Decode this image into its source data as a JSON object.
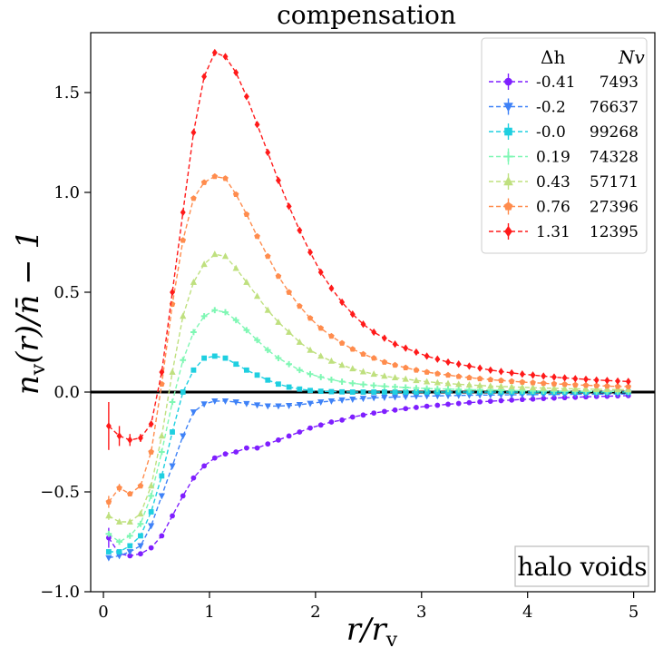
{
  "chart_data": {
    "type": "line",
    "title": "compensation",
    "xlabel": "r/r_v",
    "ylabel": "n_v(r)/n̄ − 1",
    "xlim": [
      -0.12,
      5.2
    ],
    "ylim": [
      -1.0,
      1.8
    ],
    "xticks": [
      "0",
      "1",
      "2",
      "3",
      "4",
      "5"
    ],
    "yticks": [
      "−1.0",
      "−0.5",
      "0.0",
      "0.5",
      "1.0",
      "1.5"
    ],
    "xtick_values": [
      0,
      1,
      2,
      3,
      4,
      5
    ],
    "ytick_values": [
      -1.0,
      -0.5,
      0.0,
      0.5,
      1.0,
      1.5
    ],
    "reference_line_y": 0.0,
    "legend": {
      "placement": "top-right",
      "header_delta": "Δh",
      "header_n": "Nv"
    },
    "annotation": "halo voids",
    "series": [
      {
        "name": "-0.41",
        "n_voids": "7493",
        "color": "#7f1fff",
        "marker": "circle",
        "x": [
          0.05,
          0.15,
          0.25,
          0.35,
          0.45,
          0.55,
          0.65,
          0.75,
          0.85,
          0.95,
          1.05,
          1.15,
          1.25,
          1.35,
          1.45,
          1.55,
          1.65,
          1.75,
          1.85,
          1.95,
          2.05,
          2.15,
          2.25,
          2.35,
          2.45,
          2.55,
          2.65,
          2.75,
          2.85,
          2.95,
          3.05,
          3.15,
          3.25,
          3.35,
          3.45,
          3.55,
          3.65,
          3.75,
          3.85,
          3.95,
          4.05,
          4.15,
          4.25,
          4.35,
          4.45,
          4.55,
          4.65,
          4.75,
          4.85,
          4.95
        ],
        "y": [
          -0.73,
          -0.81,
          -0.82,
          -0.81,
          -0.78,
          -0.72,
          -0.62,
          -0.52,
          -0.43,
          -0.37,
          -0.33,
          -0.31,
          -0.3,
          -0.28,
          -0.28,
          -0.26,
          -0.24,
          -0.22,
          -0.2,
          -0.18,
          -0.165,
          -0.15,
          -0.14,
          -0.125,
          -0.115,
          -0.105,
          -0.097,
          -0.09,
          -0.083,
          -0.077,
          -0.071,
          -0.066,
          -0.061,
          -0.057,
          -0.053,
          -0.049,
          -0.046,
          -0.043,
          -0.04,
          -0.037,
          -0.035,
          -0.032,
          -0.03,
          -0.028,
          -0.026,
          -0.024,
          -0.022,
          -0.021,
          -0.019,
          -0.018
        ],
        "err": [
          0.05,
          0.02,
          0.01,
          0.01,
          0,
          0,
          0,
          0,
          0,
          0,
          0,
          0,
          0,
          0,
          0,
          0,
          0,
          0,
          0,
          0,
          0,
          0,
          0,
          0,
          0,
          0,
          0,
          0,
          0,
          0,
          0,
          0,
          0,
          0,
          0,
          0,
          0,
          0,
          0,
          0,
          0,
          0,
          0,
          0,
          0,
          0,
          0,
          0,
          0,
          0
        ]
      },
      {
        "name": "-0.2",
        "n_voids": "76637",
        "color": "#3f82f7",
        "marker": "triangle-down",
        "x": [
          0.05,
          0.15,
          0.25,
          0.35,
          0.45,
          0.55,
          0.65,
          0.75,
          0.85,
          0.95,
          1.05,
          1.15,
          1.25,
          1.35,
          1.45,
          1.55,
          1.65,
          1.75,
          1.85,
          1.95,
          2.05,
          2.15,
          2.25,
          2.35,
          2.45,
          2.55,
          2.65,
          2.75,
          2.85,
          2.95,
          3.05,
          3.15,
          3.25,
          3.35,
          3.45,
          3.55,
          3.65,
          3.75,
          3.85,
          3.95,
          4.05,
          4.15,
          4.25,
          4.35,
          4.45,
          4.55,
          4.65,
          4.75,
          4.85,
          4.95
        ],
        "y": [
          -0.83,
          -0.82,
          -0.8,
          -0.77,
          -0.67,
          -0.52,
          -0.37,
          -0.22,
          -0.1,
          -0.06,
          -0.045,
          -0.045,
          -0.05,
          -0.058,
          -0.065,
          -0.07,
          -0.07,
          -0.068,
          -0.063,
          -0.057,
          -0.05,
          -0.045,
          -0.04,
          -0.036,
          -0.032,
          -0.029,
          -0.027,
          -0.025,
          -0.023,
          -0.021,
          -0.02,
          -0.019,
          -0.018,
          -0.017,
          -0.016,
          -0.015,
          -0.015,
          -0.014,
          -0.014,
          -0.013,
          -0.013,
          -0.012,
          -0.012,
          -0.012,
          -0.011,
          -0.011,
          -0.011,
          -0.01,
          -0.01,
          -0.01
        ],
        "err": [
          0.01,
          0.005,
          0,
          0,
          0,
          0,
          0,
          0,
          0,
          0,
          0,
          0,
          0,
          0,
          0,
          0,
          0,
          0,
          0,
          0,
          0,
          0,
          0,
          0,
          0,
          0,
          0,
          0,
          0,
          0,
          0,
          0,
          0,
          0,
          0,
          0,
          0,
          0,
          0,
          0,
          0,
          0,
          0,
          0,
          0,
          0,
          0,
          0,
          0,
          0
        ]
      },
      {
        "name": "-0.0",
        "n_voids": "99268",
        "color": "#1fcfe0",
        "marker": "square",
        "x": [
          0.05,
          0.15,
          0.25,
          0.35,
          0.45,
          0.55,
          0.65,
          0.75,
          0.85,
          0.95,
          1.05,
          1.15,
          1.25,
          1.35,
          1.45,
          1.55,
          1.65,
          1.75,
          1.85,
          1.95,
          2.05,
          2.15,
          2.25,
          2.35,
          2.45,
          2.55,
          2.65,
          2.75,
          2.85,
          2.95,
          3.05,
          3.15,
          3.25,
          3.35,
          3.45,
          3.55,
          3.65,
          3.75,
          3.85,
          3.95,
          4.05,
          4.15,
          4.25,
          4.35,
          4.45,
          4.55,
          4.65,
          4.75,
          4.85,
          4.95
        ],
        "y": [
          -0.8,
          -0.8,
          -0.77,
          -0.72,
          -0.6,
          -0.42,
          -0.2,
          0.0,
          0.11,
          0.17,
          0.18,
          0.17,
          0.14,
          0.11,
          0.085,
          0.06,
          0.04,
          0.025,
          0.015,
          0.008,
          0.004,
          0.002,
          0.001,
          0.0,
          0.0,
          0.0,
          0.0,
          0.0,
          0.0,
          0.0,
          0.0,
          0.0,
          0.0,
          0.0,
          0.0,
          0.0,
          0.0,
          0.0,
          0.0,
          0.0,
          0.0,
          0.0,
          0.0,
          0.0,
          0.0,
          0.0,
          0.0,
          0.0,
          0.0,
          0.0
        ],
        "err": [
          0.01,
          0.005,
          0,
          0,
          0,
          0,
          0,
          0,
          0,
          0,
          0,
          0,
          0,
          0,
          0,
          0,
          0,
          0,
          0,
          0,
          0,
          0,
          0,
          0,
          0,
          0,
          0,
          0,
          0,
          0,
          0,
          0,
          0,
          0,
          0,
          0,
          0,
          0,
          0,
          0,
          0,
          0,
          0,
          0,
          0,
          0,
          0,
          0,
          0,
          0
        ]
      },
      {
        "name": "0.19",
        "n_voids": "74328",
        "color": "#7ff7b4",
        "marker": "plus",
        "x": [
          0.05,
          0.15,
          0.25,
          0.35,
          0.45,
          0.55,
          0.65,
          0.75,
          0.85,
          0.95,
          1.05,
          1.15,
          1.25,
          1.35,
          1.45,
          1.55,
          1.65,
          1.75,
          1.85,
          1.95,
          2.05,
          2.15,
          2.25,
          2.35,
          2.45,
          2.55,
          2.65,
          2.75,
          2.85,
          2.95,
          3.05,
          3.15,
          3.25,
          3.35,
          3.45,
          3.55,
          3.65,
          3.75,
          3.85,
          3.95,
          4.05,
          4.15,
          4.25,
          4.35,
          4.45,
          4.55,
          4.65,
          4.75,
          4.85,
          4.95
        ],
        "y": [
          -0.71,
          -0.75,
          -0.72,
          -0.66,
          -0.52,
          -0.3,
          -0.05,
          0.16,
          0.3,
          0.38,
          0.41,
          0.4,
          0.36,
          0.31,
          0.26,
          0.21,
          0.17,
          0.14,
          0.11,
          0.09,
          0.075,
          0.062,
          0.052,
          0.044,
          0.038,
          0.033,
          0.029,
          0.026,
          0.023,
          0.02,
          0.018,
          0.016,
          0.015,
          0.013,
          0.012,
          0.011,
          0.01,
          0.009,
          0.008,
          0.007,
          0.006,
          0.006,
          0.005,
          0.005,
          0.004,
          0.004,
          0.003,
          0.003,
          0.003,
          0.002
        ],
        "err": [
          0.01,
          0.005,
          0,
          0,
          0,
          0,
          0,
          0,
          0,
          0,
          0,
          0,
          0,
          0,
          0,
          0,
          0,
          0,
          0,
          0,
          0,
          0,
          0,
          0,
          0,
          0,
          0,
          0,
          0,
          0,
          0,
          0,
          0,
          0,
          0,
          0,
          0,
          0,
          0,
          0,
          0,
          0,
          0,
          0,
          0,
          0,
          0,
          0,
          0,
          0
        ]
      },
      {
        "name": "0.43",
        "n_voids": "57171",
        "color": "#bfe07f",
        "marker": "triangle-up",
        "x": [
          0.05,
          0.15,
          0.25,
          0.35,
          0.45,
          0.55,
          0.65,
          0.75,
          0.85,
          0.95,
          1.05,
          1.15,
          1.25,
          1.35,
          1.45,
          1.55,
          1.65,
          1.75,
          1.85,
          1.95,
          2.05,
          2.15,
          2.25,
          2.35,
          2.45,
          2.55,
          2.65,
          2.75,
          2.85,
          2.95,
          3.05,
          3.15,
          3.25,
          3.35,
          3.45,
          3.55,
          3.65,
          3.75,
          3.85,
          3.95,
          4.05,
          4.15,
          4.25,
          4.35,
          4.45,
          4.55,
          4.65,
          4.75,
          4.85,
          4.95
        ],
        "y": [
          -0.62,
          -0.65,
          -0.65,
          -0.61,
          -0.47,
          -0.22,
          0.1,
          0.38,
          0.55,
          0.64,
          0.69,
          0.68,
          0.62,
          0.55,
          0.48,
          0.41,
          0.35,
          0.3,
          0.25,
          0.21,
          0.18,
          0.155,
          0.135,
          0.117,
          0.102,
          0.09,
          0.08,
          0.072,
          0.065,
          0.058,
          0.052,
          0.047,
          0.043,
          0.039,
          0.036,
          0.033,
          0.03,
          0.028,
          0.026,
          0.024,
          0.022,
          0.02,
          0.019,
          0.017,
          0.016,
          0.015,
          0.014,
          0.013,
          0.012,
          0.012
        ],
        "err": [
          0.02,
          0.01,
          0.005,
          0,
          0,
          0,
          0,
          0,
          0,
          0,
          0,
          0,
          0,
          0,
          0,
          0,
          0,
          0,
          0,
          0,
          0,
          0,
          0,
          0,
          0,
          0,
          0,
          0,
          0,
          0,
          0,
          0,
          0,
          0,
          0,
          0,
          0,
          0,
          0,
          0,
          0,
          0,
          0,
          0,
          0,
          0,
          0,
          0,
          0,
          0
        ]
      },
      {
        "name": "0.76",
        "n_voids": "27396",
        "color": "#ff8c4d",
        "marker": "pentagon",
        "x": [
          0.05,
          0.15,
          0.25,
          0.35,
          0.45,
          0.55,
          0.65,
          0.75,
          0.85,
          0.95,
          1.05,
          1.15,
          1.25,
          1.35,
          1.45,
          1.55,
          1.65,
          1.75,
          1.85,
          1.95,
          2.05,
          2.15,
          2.25,
          2.35,
          2.45,
          2.55,
          2.65,
          2.75,
          2.85,
          2.95,
          3.05,
          3.15,
          3.25,
          3.35,
          3.45,
          3.55,
          3.65,
          3.75,
          3.85,
          3.95,
          4.05,
          4.15,
          4.25,
          4.35,
          4.45,
          4.55,
          4.65,
          4.75,
          4.85,
          4.95
        ],
        "y": [
          -0.55,
          -0.48,
          -0.51,
          -0.47,
          -0.3,
          0.04,
          0.44,
          0.76,
          0.97,
          1.05,
          1.08,
          1.07,
          0.99,
          0.89,
          0.78,
          0.68,
          0.58,
          0.5,
          0.43,
          0.37,
          0.32,
          0.28,
          0.245,
          0.215,
          0.19,
          0.17,
          0.15,
          0.135,
          0.122,
          0.11,
          0.1,
          0.092,
          0.085,
          0.078,
          0.072,
          0.067,
          0.062,
          0.058,
          0.054,
          0.05,
          0.047,
          0.044,
          0.041,
          0.039,
          0.036,
          0.034,
          0.032,
          0.03,
          0.028,
          0.027
        ],
        "err": [
          0.03,
          0.02,
          0.01,
          0.005,
          0,
          0,
          0,
          0,
          0,
          0,
          0,
          0,
          0,
          0,
          0,
          0,
          0,
          0,
          0,
          0,
          0,
          0,
          0,
          0,
          0,
          0,
          0,
          0,
          0,
          0,
          0,
          0,
          0,
          0,
          0,
          0,
          0,
          0,
          0,
          0,
          0,
          0,
          0,
          0,
          0,
          0,
          0,
          0,
          0,
          0
        ]
      },
      {
        "name": "1.31",
        "n_voids": "12395",
        "color": "#ff1a1a",
        "marker": "diamond",
        "x": [
          0.05,
          0.15,
          0.25,
          0.35,
          0.45,
          0.55,
          0.65,
          0.75,
          0.85,
          0.95,
          1.05,
          1.15,
          1.25,
          1.35,
          1.45,
          1.55,
          1.65,
          1.75,
          1.85,
          1.95,
          2.05,
          2.15,
          2.25,
          2.35,
          2.45,
          2.55,
          2.65,
          2.75,
          2.85,
          2.95,
          3.05,
          3.15,
          3.25,
          3.35,
          3.45,
          3.55,
          3.65,
          3.75,
          3.85,
          3.95,
          4.05,
          4.15,
          4.25,
          4.35,
          4.45,
          4.55,
          4.65,
          4.75,
          4.85,
          4.95
        ],
        "y": [
          -0.17,
          -0.22,
          -0.24,
          -0.23,
          -0.16,
          0.1,
          0.5,
          0.9,
          1.3,
          1.58,
          1.7,
          1.68,
          1.6,
          1.48,
          1.34,
          1.2,
          1.06,
          0.93,
          0.81,
          0.7,
          0.6,
          0.52,
          0.45,
          0.39,
          0.34,
          0.3,
          0.27,
          0.24,
          0.22,
          0.2,
          0.18,
          0.165,
          0.15,
          0.14,
          0.13,
          0.12,
          0.11,
          0.103,
          0.096,
          0.09,
          0.085,
          0.08,
          0.075,
          0.071,
          0.067,
          0.064,
          0.06,
          0.058,
          0.055,
          0.053
        ],
        "err": [
          0.12,
          0.05,
          0.03,
          0.02,
          0.01,
          0,
          0,
          0,
          0,
          0,
          0,
          0,
          0,
          0,
          0,
          0,
          0,
          0,
          0,
          0,
          0,
          0,
          0,
          0,
          0,
          0,
          0,
          0,
          0,
          0,
          0,
          0,
          0,
          0,
          0,
          0,
          0,
          0,
          0,
          0,
          0,
          0,
          0,
          0,
          0,
          0,
          0,
          0,
          0,
          0
        ]
      }
    ]
  }
}
